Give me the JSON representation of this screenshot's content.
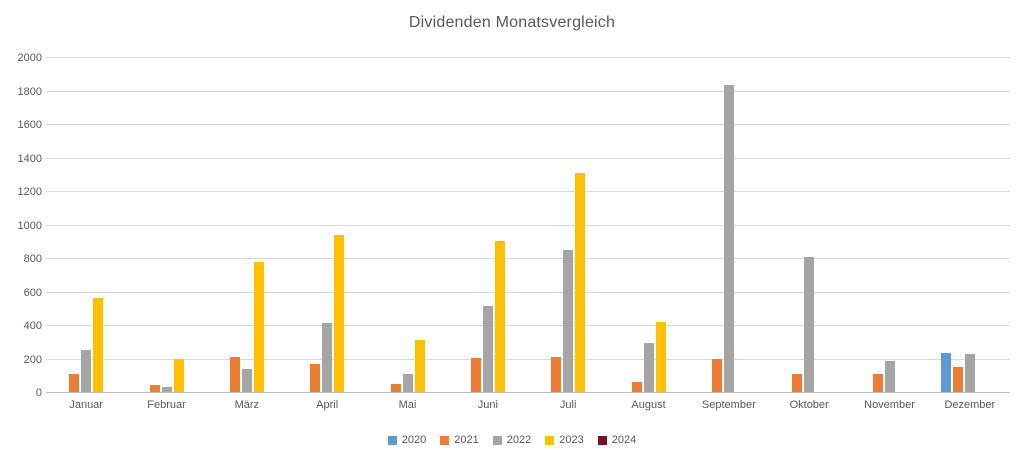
{
  "title": "Dividenden Monatsvergleich",
  "colors": {
    "title_text": "#595959",
    "axis_text": "#595959",
    "gridline": "#d9d9d9",
    "axis_line": "#bfbfbf",
    "background": "#ffffff"
  },
  "chart_data": {
    "type": "bar",
    "title": "Dividenden Monatsvergleich",
    "xlabel": "",
    "ylabel": "",
    "ylim": [
      0,
      2000
    ],
    "ytick_step": 200,
    "yticks": [
      "2000",
      "1800",
      "1600",
      "1400",
      "1200",
      "1000",
      "800",
      "600",
      "400",
      "200",
      "0"
    ],
    "grid": "horizontal",
    "legend_position": "bottom",
    "categories": [
      "Januar",
      "Februar",
      "März",
      "April",
      "Mai",
      "Juni",
      "Juli",
      "August",
      "September",
      "Oktober",
      "November",
      "Dezember"
    ],
    "series": [
      {
        "name": "2020",
        "color": "#5b9bd5",
        "values": [
          0,
          0,
          0,
          0,
          0,
          0,
          0,
          0,
          0,
          0,
          0,
          235
        ]
      },
      {
        "name": "2021",
        "color": "#ed7d31",
        "values": [
          105,
          40,
          210,
          170,
          45,
          205,
          210,
          60,
          200,
          105,
          105,
          150
        ]
      },
      {
        "name": "2022",
        "color": "#a5a5a5",
        "values": [
          250,
          30,
          140,
          415,
          110,
          515,
          850,
          295,
          1835,
          805,
          185,
          225
        ]
      },
      {
        "name": "2023",
        "color": "#ffc000",
        "values": [
          560,
          200,
          775,
          935,
          310,
          900,
          1305,
          420,
          0,
          0,
          0,
          0
        ]
      },
      {
        "name": "2024",
        "color": "#7e0e24",
        "values": [
          0,
          0,
          0,
          0,
          0,
          0,
          0,
          0,
          0,
          0,
          0,
          0
        ]
      }
    ]
  }
}
